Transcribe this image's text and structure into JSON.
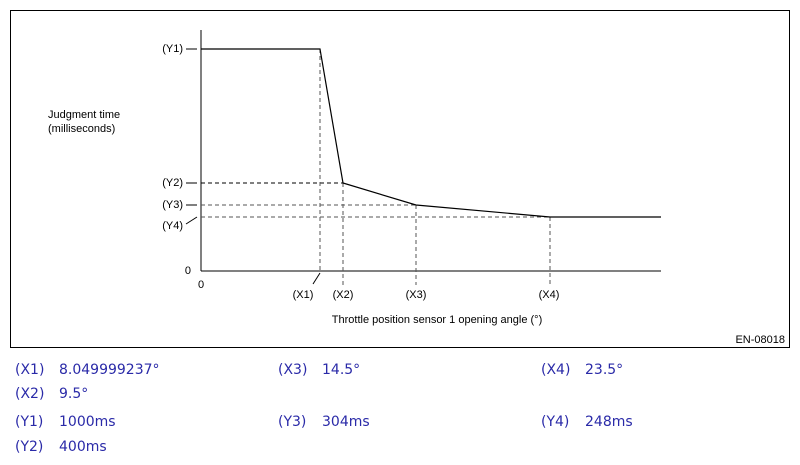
{
  "diagram": {
    "y_axis_label": [
      "Judgment time",
      "(milliseconds)"
    ],
    "x_axis_label": "Throttle position sensor 1 opening angle (°)",
    "origin_x": "0",
    "origin_y": "0",
    "y_markers": [
      "(Y1)",
      "(Y2)",
      "(Y3)",
      "(Y4)"
    ],
    "x_markers": [
      "(X1)",
      "(X2)",
      "(X3)",
      "(X4)"
    ],
    "figure_id": "EN-08018"
  },
  "specs": [
    {
      "label": "(X1)",
      "value": "8.049999237°"
    },
    {
      "label": "(X3)",
      "value": "14.5°"
    },
    {
      "label": "(X4)",
      "value": "23.5°"
    },
    {
      "label": "(X2)",
      "value": "9.5°"
    },
    {
      "label": "(Y1)",
      "value": "1000ms"
    },
    {
      "label": "(Y3)",
      "value": "304ms"
    },
    {
      "label": "(Y4)",
      "value": "248ms"
    },
    {
      "label": "(Y2)",
      "value": "400ms"
    }
  ]
}
